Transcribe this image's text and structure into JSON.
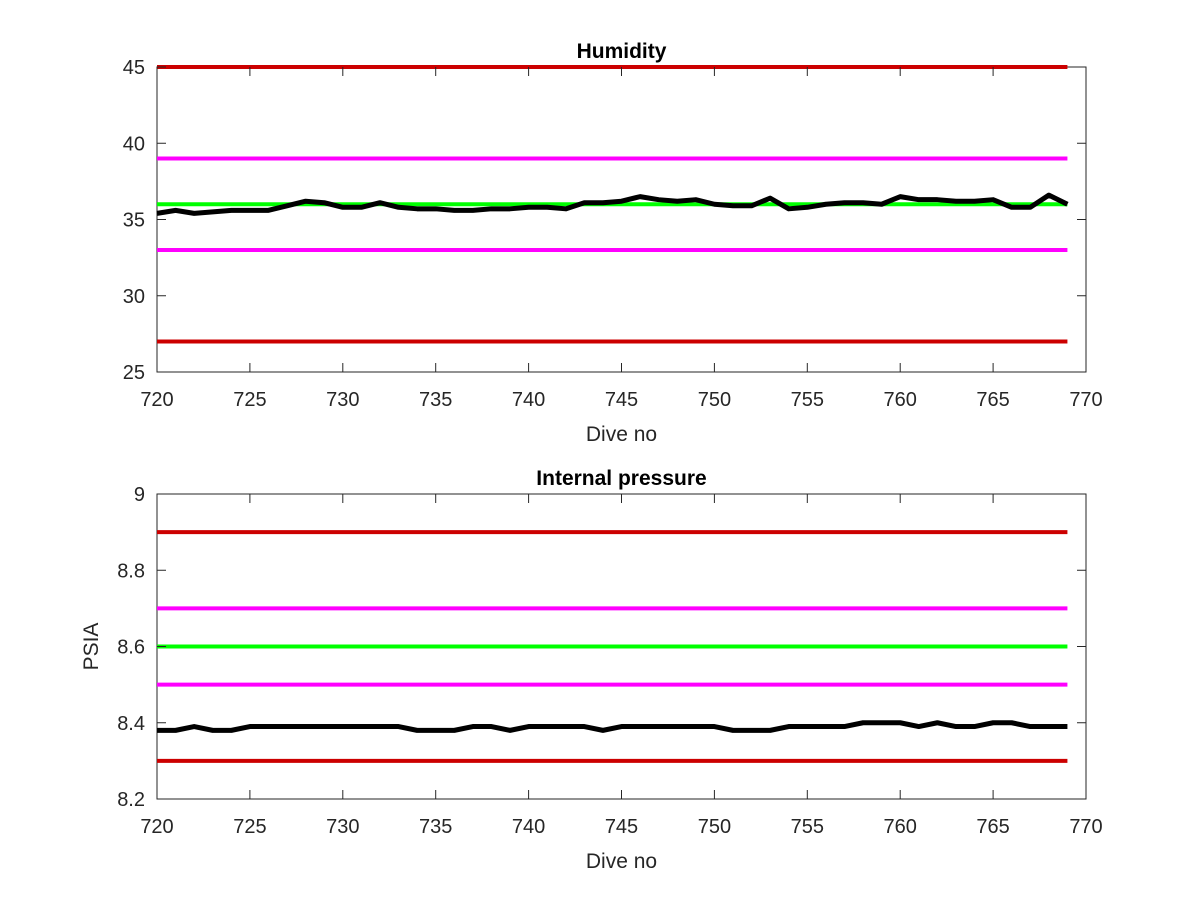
{
  "chart_data": [
    {
      "type": "line",
      "title": "Humidity",
      "xlabel": "Dive no",
      "ylabel": "",
      "xlim": [
        720,
        770
      ],
      "ylim": [
        25,
        45
      ],
      "xticks": [
        "720",
        "725",
        "730",
        "735",
        "740",
        "745",
        "750",
        "755",
        "760",
        "765",
        "770"
      ],
      "yticks": [
        "25",
        "30",
        "35",
        "40",
        "45"
      ],
      "x": [
        720,
        721,
        722,
        723,
        724,
        725,
        726,
        727,
        728,
        729,
        730,
        731,
        732,
        733,
        734,
        735,
        736,
        737,
        738,
        739,
        740,
        741,
        742,
        743,
        744,
        745,
        746,
        747,
        748,
        749,
        750,
        751,
        752,
        753,
        754,
        755,
        756,
        757,
        758,
        759,
        760,
        761,
        762,
        763,
        764,
        765,
        766,
        767,
        768,
        769
      ],
      "grid": false,
      "legend": "none",
      "series": [
        {
          "color": "#cc0000",
          "values": [
            45,
            45,
            45,
            45,
            45,
            45,
            45,
            45,
            45,
            45,
            45,
            45,
            45,
            45,
            45,
            45,
            45,
            45,
            45,
            45,
            45,
            45,
            45,
            45,
            45,
            45,
            45,
            45,
            45,
            45,
            45,
            45,
            45,
            45,
            45,
            45,
            45,
            45,
            45,
            45,
            45,
            45,
            45,
            45,
            45,
            45,
            45,
            45,
            45,
            45
          ]
        },
        {
          "color": "#ff00ff",
          "values": [
            39,
            39,
            39,
            39,
            39,
            39,
            39,
            39,
            39,
            39,
            39,
            39,
            39,
            39,
            39,
            39,
            39,
            39,
            39,
            39,
            39,
            39,
            39,
            39,
            39,
            39,
            39,
            39,
            39,
            39,
            39,
            39,
            39,
            39,
            39,
            39,
            39,
            39,
            39,
            39,
            39,
            39,
            39,
            39,
            39,
            39,
            39,
            39,
            39,
            39
          ]
        },
        {
          "color": "#00ff00",
          "values": [
            36,
            36,
            36,
            36,
            36,
            36,
            36,
            36,
            36,
            36,
            36,
            36,
            36,
            36,
            36,
            36,
            36,
            36,
            36,
            36,
            36,
            36,
            36,
            36,
            36,
            36,
            36,
            36,
            36,
            36,
            36,
            36,
            36,
            36,
            36,
            36,
            36,
            36,
            36,
            36,
            36,
            36,
            36,
            36,
            36,
            36,
            36,
            36,
            36,
            36
          ]
        },
        {
          "color": "#ff00ff",
          "values": [
            33,
            33,
            33,
            33,
            33,
            33,
            33,
            33,
            33,
            33,
            33,
            33,
            33,
            33,
            33,
            33,
            33,
            33,
            33,
            33,
            33,
            33,
            33,
            33,
            33,
            33,
            33,
            33,
            33,
            33,
            33,
            33,
            33,
            33,
            33,
            33,
            33,
            33,
            33,
            33,
            33,
            33,
            33,
            33,
            33,
            33,
            33,
            33,
            33,
            33
          ]
        },
        {
          "color": "#cc0000",
          "values": [
            27,
            27,
            27,
            27,
            27,
            27,
            27,
            27,
            27,
            27,
            27,
            27,
            27,
            27,
            27,
            27,
            27,
            27,
            27,
            27,
            27,
            27,
            27,
            27,
            27,
            27,
            27,
            27,
            27,
            27,
            27,
            27,
            27,
            27,
            27,
            27,
            27,
            27,
            27,
            27,
            27,
            27,
            27,
            27,
            27,
            27,
            27,
            27,
            27,
            27
          ]
        },
        {
          "color": "#000000",
          "values": [
            35.4,
            35.6,
            35.4,
            35.5,
            35.6,
            35.6,
            35.6,
            35.9,
            36.2,
            36.1,
            35.8,
            35.8,
            36.1,
            35.8,
            35.7,
            35.7,
            35.6,
            35.6,
            35.7,
            35.7,
            35.8,
            35.8,
            35.7,
            36.1,
            36.1,
            36.2,
            36.5,
            36.3,
            36.2,
            36.3,
            36.0,
            35.9,
            35.9,
            36.4,
            35.7,
            35.8,
            36.0,
            36.1,
            36.1,
            36.0,
            36.5,
            36.3,
            36.3,
            36.2,
            36.2,
            36.3,
            35.8,
            35.8,
            36.6,
            36.0
          ]
        }
      ]
    },
    {
      "type": "line",
      "title": "Internal pressure",
      "xlabel": "Dive no",
      "ylabel": "PSIA",
      "xlim": [
        720,
        770
      ],
      "ylim": [
        8.2,
        9.0
      ],
      "xticks": [
        "720",
        "725",
        "730",
        "735",
        "740",
        "745",
        "750",
        "755",
        "760",
        "765",
        "770"
      ],
      "yticks": [
        "8.2",
        "8.4",
        "8.6",
        "8.8",
        "9"
      ],
      "x": [
        720,
        721,
        722,
        723,
        724,
        725,
        726,
        727,
        728,
        729,
        730,
        731,
        732,
        733,
        734,
        735,
        736,
        737,
        738,
        739,
        740,
        741,
        742,
        743,
        744,
        745,
        746,
        747,
        748,
        749,
        750,
        751,
        752,
        753,
        754,
        755,
        756,
        757,
        758,
        759,
        760,
        761,
        762,
        763,
        764,
        765,
        766,
        767,
        768,
        769
      ],
      "grid": false,
      "legend": "none",
      "series": [
        {
          "color": "#cc0000",
          "values": [
            8.9,
            8.9,
            8.9,
            8.9,
            8.9,
            8.9,
            8.9,
            8.9,
            8.9,
            8.9,
            8.9,
            8.9,
            8.9,
            8.9,
            8.9,
            8.9,
            8.9,
            8.9,
            8.9,
            8.9,
            8.9,
            8.9,
            8.9,
            8.9,
            8.9,
            8.9,
            8.9,
            8.9,
            8.9,
            8.9,
            8.9,
            8.9,
            8.9,
            8.9,
            8.9,
            8.9,
            8.9,
            8.9,
            8.9,
            8.9,
            8.9,
            8.9,
            8.9,
            8.9,
            8.9,
            8.9,
            8.9,
            8.9,
            8.9,
            8.9
          ]
        },
        {
          "color": "#ff00ff",
          "values": [
            8.7,
            8.7,
            8.7,
            8.7,
            8.7,
            8.7,
            8.7,
            8.7,
            8.7,
            8.7,
            8.7,
            8.7,
            8.7,
            8.7,
            8.7,
            8.7,
            8.7,
            8.7,
            8.7,
            8.7,
            8.7,
            8.7,
            8.7,
            8.7,
            8.7,
            8.7,
            8.7,
            8.7,
            8.7,
            8.7,
            8.7,
            8.7,
            8.7,
            8.7,
            8.7,
            8.7,
            8.7,
            8.7,
            8.7,
            8.7,
            8.7,
            8.7,
            8.7,
            8.7,
            8.7,
            8.7,
            8.7,
            8.7,
            8.7,
            8.7
          ]
        },
        {
          "color": "#00ff00",
          "values": [
            8.6,
            8.6,
            8.6,
            8.6,
            8.6,
            8.6,
            8.6,
            8.6,
            8.6,
            8.6,
            8.6,
            8.6,
            8.6,
            8.6,
            8.6,
            8.6,
            8.6,
            8.6,
            8.6,
            8.6,
            8.6,
            8.6,
            8.6,
            8.6,
            8.6,
            8.6,
            8.6,
            8.6,
            8.6,
            8.6,
            8.6,
            8.6,
            8.6,
            8.6,
            8.6,
            8.6,
            8.6,
            8.6,
            8.6,
            8.6,
            8.6,
            8.6,
            8.6,
            8.6,
            8.6,
            8.6,
            8.6,
            8.6,
            8.6,
            8.6
          ]
        },
        {
          "color": "#ff00ff",
          "values": [
            8.5,
            8.5,
            8.5,
            8.5,
            8.5,
            8.5,
            8.5,
            8.5,
            8.5,
            8.5,
            8.5,
            8.5,
            8.5,
            8.5,
            8.5,
            8.5,
            8.5,
            8.5,
            8.5,
            8.5,
            8.5,
            8.5,
            8.5,
            8.5,
            8.5,
            8.5,
            8.5,
            8.5,
            8.5,
            8.5,
            8.5,
            8.5,
            8.5,
            8.5,
            8.5,
            8.5,
            8.5,
            8.5,
            8.5,
            8.5,
            8.5,
            8.5,
            8.5,
            8.5,
            8.5,
            8.5,
            8.5,
            8.5,
            8.5,
            8.5
          ]
        },
        {
          "color": "#cc0000",
          "values": [
            8.3,
            8.3,
            8.3,
            8.3,
            8.3,
            8.3,
            8.3,
            8.3,
            8.3,
            8.3,
            8.3,
            8.3,
            8.3,
            8.3,
            8.3,
            8.3,
            8.3,
            8.3,
            8.3,
            8.3,
            8.3,
            8.3,
            8.3,
            8.3,
            8.3,
            8.3,
            8.3,
            8.3,
            8.3,
            8.3,
            8.3,
            8.3,
            8.3,
            8.3,
            8.3,
            8.3,
            8.3,
            8.3,
            8.3,
            8.3,
            8.3,
            8.3,
            8.3,
            8.3,
            8.3,
            8.3,
            8.3,
            8.3,
            8.3,
            8.3
          ]
        },
        {
          "color": "#000000",
          "values": [
            8.38,
            8.38,
            8.39,
            8.38,
            8.38,
            8.39,
            8.39,
            8.39,
            8.39,
            8.39,
            8.39,
            8.39,
            8.39,
            8.39,
            8.38,
            8.38,
            8.38,
            8.39,
            8.39,
            8.38,
            8.39,
            8.39,
            8.39,
            8.39,
            8.38,
            8.39,
            8.39,
            8.39,
            8.39,
            8.39,
            8.39,
            8.38,
            8.38,
            8.38,
            8.39,
            8.39,
            8.39,
            8.39,
            8.4,
            8.4,
            8.4,
            8.39,
            8.4,
            8.39,
            8.39,
            8.4,
            8.4,
            8.39,
            8.39,
            8.39
          ]
        }
      ]
    }
  ]
}
